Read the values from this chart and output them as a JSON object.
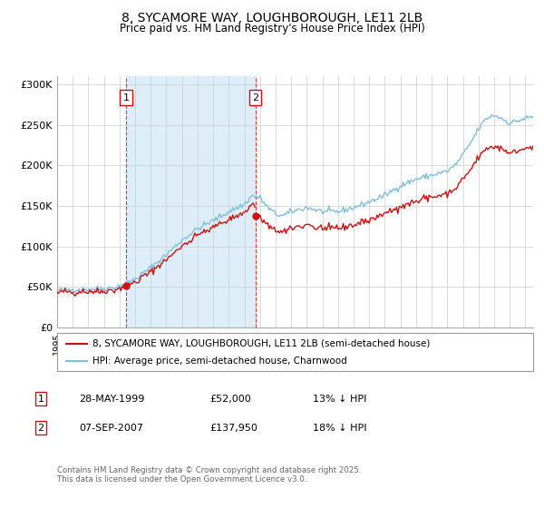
{
  "title_line1": "8, SYCAMORE WAY, LOUGHBOROUGH, LE11 2LB",
  "title_line2": "Price paid vs. HM Land Registry's House Price Index (HPI)",
  "ylim": [
    0,
    310000
  ],
  "yticks": [
    0,
    50000,
    100000,
    150000,
    200000,
    250000,
    300000
  ],
  "ytick_labels": [
    "£0",
    "£50K",
    "£100K",
    "£150K",
    "£200K",
    "£250K",
    "£300K"
  ],
  "hpi_color": "#7fbfdf",
  "price_color": "#cc1111",
  "shade_color": "#ddeef8",
  "marker1_date": 1999.41,
  "marker1_price": 52000,
  "marker2_date": 2007.7,
  "marker2_price": 137950,
  "legend_line1": "8, SYCAMORE WAY, LOUGHBOROUGH, LE11 2LB (semi-detached house)",
  "legend_line2": "HPI: Average price, semi-detached house, Charnwood",
  "footnote": "Contains HM Land Registry data © Crown copyright and database right 2025.\nThis data is licensed under the Open Government Licence v3.0.",
  "bg_color": "#ffffff",
  "grid_color": "#cccccc",
  "xlim_start": 1995.0,
  "xlim_end": 2025.5
}
